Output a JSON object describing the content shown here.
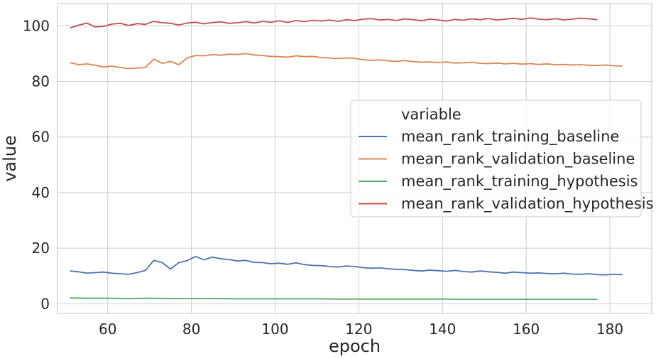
{
  "chart_data": {
    "type": "line",
    "xlabel": "epoch",
    "ylabel": "value",
    "xlim": [
      48,
      190
    ],
    "ylim": [
      -3.5,
      108
    ],
    "xticks": [
      60,
      80,
      100,
      120,
      140,
      160,
      180
    ],
    "yticks": [
      0,
      20,
      40,
      60,
      80,
      100
    ],
    "grid": true,
    "legend": {
      "title": "variable",
      "position": "center-right"
    },
    "series": [
      {
        "name": "mean_rank_training_baseline",
        "color": "#4c72b0",
        "x": [
          51,
          53,
          55,
          57,
          59,
          61,
          63,
          65,
          67,
          69,
          71,
          73,
          75,
          77,
          79,
          81,
          83,
          85,
          87,
          89,
          91,
          93,
          95,
          97,
          99,
          101,
          103,
          105,
          107,
          109,
          111,
          113,
          115,
          117,
          119,
          121,
          123,
          125,
          127,
          129,
          131,
          133,
          135,
          137,
          139,
          141,
          143,
          145,
          147,
          149,
          151,
          153,
          155,
          157,
          159,
          161,
          163,
          165,
          167,
          169,
          171,
          173,
          175,
          177,
          179,
          181,
          183
        ],
        "y": [
          11.8,
          11.5,
          11.0,
          11.2,
          11.4,
          11.0,
          10.8,
          10.6,
          11.2,
          12.0,
          15.6,
          14.8,
          12.5,
          14.8,
          15.5,
          17.0,
          15.8,
          16.8,
          16.2,
          15.9,
          15.4,
          15.6,
          14.9,
          14.8,
          14.4,
          14.6,
          14.2,
          14.7,
          14.1,
          13.8,
          13.7,
          13.4,
          13.2,
          13.6,
          13.4,
          13.0,
          12.8,
          12.9,
          12.6,
          12.4,
          12.3,
          12.0,
          11.8,
          12.1,
          11.9,
          11.7,
          12.0,
          11.6,
          11.4,
          11.8,
          11.5,
          11.3,
          11.0,
          11.4,
          11.2,
          11.0,
          11.1,
          10.9,
          10.8,
          11.0,
          10.7,
          10.6,
          10.8,
          10.5,
          10.4,
          10.6,
          10.5
        ]
      },
      {
        "name": "mean_rank_validation_baseline",
        "color": "#dd8452",
        "x": [
          51,
          53,
          55,
          57,
          59,
          61,
          63,
          65,
          67,
          69,
          71,
          73,
          75,
          77,
          79,
          81,
          83,
          85,
          87,
          89,
          91,
          93,
          95,
          97,
          99,
          101,
          103,
          105,
          107,
          109,
          111,
          113,
          115,
          117,
          119,
          121,
          123,
          125,
          127,
          129,
          131,
          133,
          135,
          137,
          139,
          141,
          143,
          145,
          147,
          149,
          151,
          153,
          155,
          157,
          159,
          161,
          163,
          165,
          167,
          169,
          171,
          173,
          175,
          177,
          179,
          181,
          183
        ],
        "y": [
          86.8,
          86.0,
          86.3,
          85.8,
          85.2,
          85.5,
          85.0,
          84.6,
          84.8,
          85.0,
          88.0,
          86.5,
          87.2,
          86.0,
          88.5,
          89.3,
          89.2,
          89.6,
          89.4,
          89.8,
          89.7,
          90.0,
          89.5,
          89.3,
          89.0,
          88.9,
          88.7,
          89.2,
          88.9,
          89.0,
          88.6,
          88.4,
          88.2,
          88.5,
          88.3,
          87.8,
          87.6,
          87.7,
          87.4,
          87.2,
          87.5,
          87.1,
          86.9,
          87.0,
          86.8,
          87.0,
          86.6,
          86.7,
          86.9,
          86.5,
          86.4,
          86.6,
          86.3,
          86.5,
          86.2,
          86.4,
          86.1,
          86.3,
          86.0,
          86.1,
          85.9,
          86.0,
          85.8,
          85.7,
          85.9,
          85.6,
          85.5
        ]
      },
      {
        "name": "mean_rank_training_hypothesis",
        "color": "#55a868",
        "x": [
          51,
          55,
          60,
          65,
          70,
          75,
          80,
          85,
          90,
          95,
          100,
          105,
          110,
          115,
          120,
          125,
          130,
          135,
          140,
          145,
          150,
          155,
          160,
          165,
          170,
          175,
          177
        ],
        "y": [
          2.1,
          2.0,
          2.0,
          1.9,
          2.0,
          1.9,
          1.9,
          1.9,
          1.8,
          1.8,
          1.8,
          1.8,
          1.8,
          1.7,
          1.7,
          1.7,
          1.7,
          1.7,
          1.7,
          1.6,
          1.6,
          1.6,
          1.6,
          1.6,
          1.6,
          1.6,
          1.6
        ]
      },
      {
        "name": "mean_rank_validation_hypothesis",
        "color": "#c44e52",
        "x": [
          51,
          53,
          55,
          57,
          59,
          61,
          63,
          65,
          67,
          69,
          71,
          73,
          75,
          77,
          79,
          81,
          83,
          85,
          87,
          89,
          91,
          93,
          95,
          97,
          99,
          101,
          103,
          105,
          107,
          109,
          111,
          113,
          115,
          117,
          119,
          121,
          123,
          125,
          127,
          129,
          131,
          133,
          135,
          137,
          139,
          141,
          143,
          145,
          147,
          149,
          151,
          153,
          155,
          157,
          159,
          161,
          163,
          165,
          167,
          169,
          171,
          173,
          175,
          177
        ],
        "y": [
          99.2,
          100.2,
          101.0,
          99.6,
          99.8,
          100.6,
          100.9,
          100.1,
          100.8,
          100.5,
          101.6,
          101.1,
          100.9,
          100.3,
          101.0,
          101.3,
          100.7,
          101.2,
          101.4,
          100.9,
          101.1,
          101.5,
          101.0,
          101.6,
          101.3,
          101.8,
          101.2,
          101.9,
          101.5,
          102.0,
          101.7,
          102.1,
          101.6,
          102.2,
          101.9,
          102.4,
          102.6,
          102.1,
          102.3,
          101.9,
          102.5,
          102.2,
          101.8,
          102.4,
          102.1,
          101.7,
          102.3,
          102.0,
          102.5,
          102.2,
          102.6,
          102.1,
          102.4,
          102.7,
          102.3,
          102.8,
          102.4,
          102.2,
          102.6,
          102.1,
          102.4,
          102.7,
          102.5,
          102.2
        ]
      }
    ]
  }
}
